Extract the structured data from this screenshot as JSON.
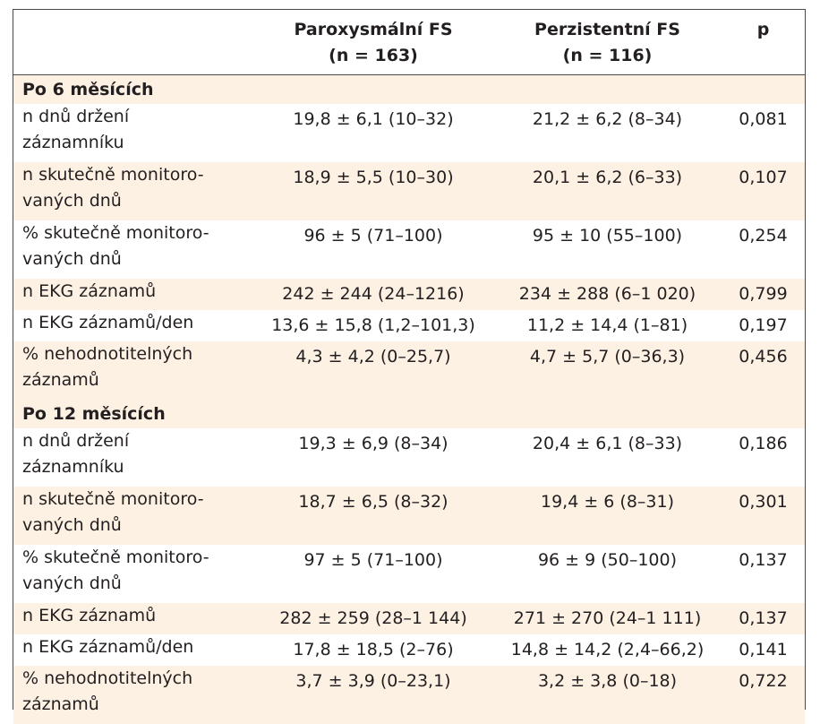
{
  "header": {
    "col1_line1": "Paroxysmální FS",
    "col1_line2": "(n = 163)",
    "col2_line1": "Perzistentní FS",
    "col2_line2": "(n = 116)",
    "col3": "p"
  },
  "sections": [
    {
      "title": "Po 6 měsících",
      "rows": [
        {
          "l1": "n dnů držení",
          "l2": "záznamníku",
          "a": "19,8 ± 6,1 (10–32)",
          "b": "21,2 ± 6,2 (8–34)",
          "p": "0,081"
        },
        {
          "l1": "n skutečně monitoro-",
          "l2": "vaných dnů",
          "a": "18,9 ± 5,5 (10–30)",
          "b": "20,1 ± 6,2 (6–33)",
          "p": "0,107"
        },
        {
          "l1": "% skutečně monitoro-",
          "l2": "vaných dnů",
          "a": "96 ± 5 (71–100)",
          "b": "95 ± 10 (55–100)",
          "p": "0,254"
        },
        {
          "l1": "n EKG záznamů",
          "a": "242 ± 244 (24–1216)",
          "b": "234 ± 288 (6–1 020)",
          "p": "0,799"
        },
        {
          "l1": "n EKG záznamů/den",
          "a": "13,6 ± 15,8 (1,2–101,3)",
          "b": "11,2 ± 14,4 (1–81)",
          "p": "0,197"
        },
        {
          "l1": "% nehodnotitelných",
          "l2": "záznamů",
          "a": "4,3 ± 4,2 (0–25,7)",
          "b": "4,7 ± 5,7 (0–36,3)",
          "p": "0,456"
        }
      ]
    },
    {
      "title": "Po 12 měsících",
      "rows": [
        {
          "l1": "n dnů držení",
          "l2": "záznamníku",
          "a": "19,3 ± 6,9 (8–34)",
          "b": "20,4 ± 6,1 (8–33)",
          "p": "0,186"
        },
        {
          "l1": "n skutečně monitoro-",
          "l2": "vaných dnů",
          "a": "18,7 ± 6,5 (8–32)",
          "b": "19,4 ± 6 (8–31)",
          "p": "0,301"
        },
        {
          "l1": "% skutečně monitoro-",
          "l2": "vaných dnů",
          "a": "97 ± 5 (71–100)",
          "b": "96 ± 9 (50–100)",
          "p": "0,137"
        },
        {
          "l1": "n EKG záznamů",
          "a": "282 ± 259 (28–1 144)",
          "b": "271 ± 270 (24–1 111)",
          "p": "0,137"
        },
        {
          "l1": "n EKG záznamů/den",
          "a": "17,8 ± 18,5 (2–76)",
          "b": "14,8 ± 14,2 (2,4–66,2)",
          "p": "0,141"
        },
        {
          "l1": "% nehodnotitelných",
          "l2": "záznamů",
          "a": "3,7 ± 3,9 (0–23,1)",
          "b": "3,2 ± 3,8 (0–18)",
          "p": "0,722"
        }
      ]
    }
  ]
}
